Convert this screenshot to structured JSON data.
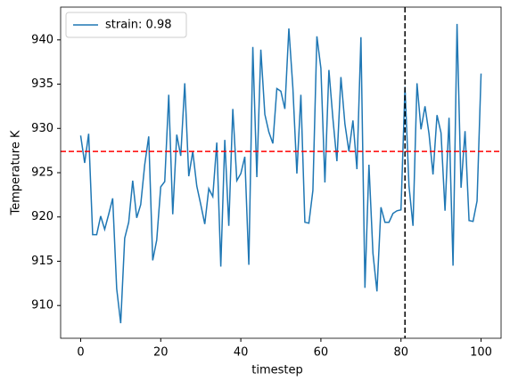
{
  "chart_data": {
    "type": "line",
    "xlabel": "timestep",
    "ylabel": "Temperature K",
    "x": [
      0,
      1,
      2,
      3,
      4,
      5,
      6,
      7,
      8,
      9,
      10,
      11,
      12,
      13,
      14,
      15,
      16,
      17,
      18,
      19,
      20,
      21,
      22,
      23,
      24,
      25,
      26,
      27,
      28,
      29,
      30,
      31,
      32,
      33,
      34,
      35,
      36,
      37,
      38,
      39,
      40,
      41,
      42,
      43,
      44,
      45,
      46,
      47,
      48,
      49,
      50,
      51,
      52,
      53,
      54,
      55,
      56,
      57,
      58,
      59,
      60,
      61,
      62,
      63,
      64,
      65,
      66,
      67,
      68,
      69,
      70,
      71,
      72,
      73,
      74,
      75,
      76,
      77,
      78,
      79,
      80,
      81,
      82,
      83,
      84,
      85,
      86,
      87,
      88,
      89,
      90,
      91,
      92,
      93,
      94,
      95,
      96,
      97,
      98,
      99,
      100
    ],
    "series": [
      {
        "name": "strain: 0.98",
        "color": "#1f77b4",
        "values": [
          929.2,
          926.1,
          929.4,
          918.0,
          918.0,
          920.1,
          918.6,
          920.3,
          922.1,
          911.9,
          908.0,
          917.6,
          919.4,
          924.1,
          919.9,
          921.4,
          925.9,
          929.1,
          915.1,
          917.4,
          923.4,
          924.0,
          933.8,
          920.3,
          929.3,
          926.9,
          935.1,
          924.6,
          927.4,
          923.5,
          921.4,
          919.2,
          923.2,
          922.3,
          928.4,
          914.4,
          928.7,
          919.0,
          932.2,
          924.1,
          924.9,
          926.8,
          914.6,
          939.2,
          924.5,
          938.9,
          931.6,
          929.6,
          928.3,
          934.5,
          934.2,
          932.2,
          941.3,
          934.6,
          924.9,
          933.8,
          919.4,
          919.3,
          923.0,
          940.4,
          936.8,
          923.9,
          936.6,
          931.1,
          926.3,
          935.8,
          930.5,
          927.4,
          930.9,
          925.4,
          940.3,
          912.0,
          925.9,
          915.9,
          911.6,
          921.1,
          919.4,
          919.4,
          920.4,
          920.7,
          920.8,
          934.7,
          923.5,
          919.0,
          935.1,
          929.9,
          932.5,
          929.4,
          924.8,
          931.5,
          929.5,
          920.7,
          931.2,
          914.5,
          941.8,
          923.3,
          929.7,
          919.6,
          919.5,
          921.8,
          936.2
        ]
      }
    ],
    "hline": {
      "y": 927.4,
      "color": "red"
    },
    "vline": {
      "x": 81,
      "color": "black"
    },
    "xlim": [
      -5,
      105
    ],
    "ylim": [
      906.3,
      943.7
    ],
    "xticks": [
      0,
      20,
      40,
      60,
      80,
      100
    ],
    "yticks": [
      910,
      915,
      920,
      925,
      930,
      935,
      940
    ],
    "legend": "upper left",
    "grid": false
  }
}
